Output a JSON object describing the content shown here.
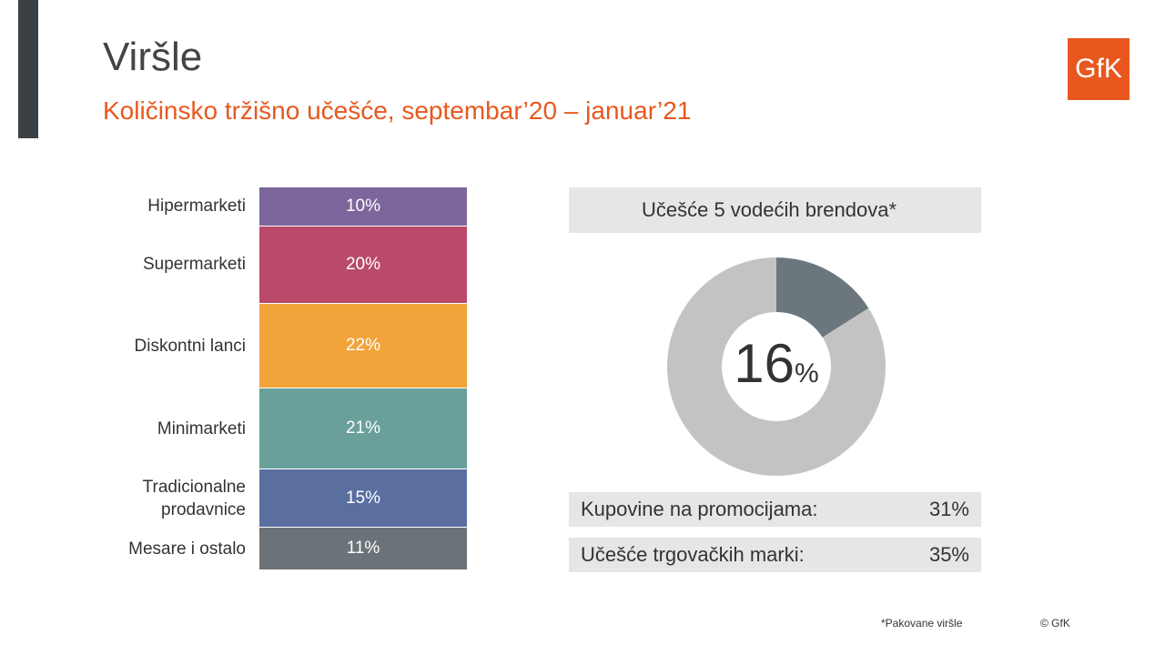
{
  "header": {
    "title": "Viršle",
    "subtitle": "Količinsko tržišno učešće, septembar’20 – januar’21",
    "logo": "GfK"
  },
  "chart_data": [
    {
      "type": "bar",
      "stacked": true,
      "title": "",
      "categories": [
        "Hipermarketi",
        "Supermarketi",
        "Diskontni lanci",
        "Minimarketi",
        "Tradicionalne prodavnice",
        "Mesare i ostalo"
      ],
      "values": [
        10,
        20,
        22,
        21,
        15,
        11
      ],
      "labels": [
        "10%",
        "20%",
        "22%",
        "21%",
        "15%",
        "11%"
      ],
      "colors": [
        "#7d669b",
        "#b94a69",
        "#f2a33a",
        "#6a9f9a",
        "#5a6fa0",
        "#6b7378"
      ]
    },
    {
      "type": "pie",
      "title": "Učešće 5 vodećih brendova*",
      "values": [
        16,
        84
      ],
      "center_label": "16",
      "center_unit": "%",
      "colors": [
        "#6b777d",
        "#c3c3c3"
      ]
    }
  ],
  "stats": [
    {
      "label": "Kupovine na promocijama:",
      "value": "31%"
    },
    {
      "label": "Učešće trgovačkih marki:",
      "value": "35%"
    }
  ],
  "footer": {
    "note": "*Pakovane viršle",
    "copyright": "© GfK"
  }
}
